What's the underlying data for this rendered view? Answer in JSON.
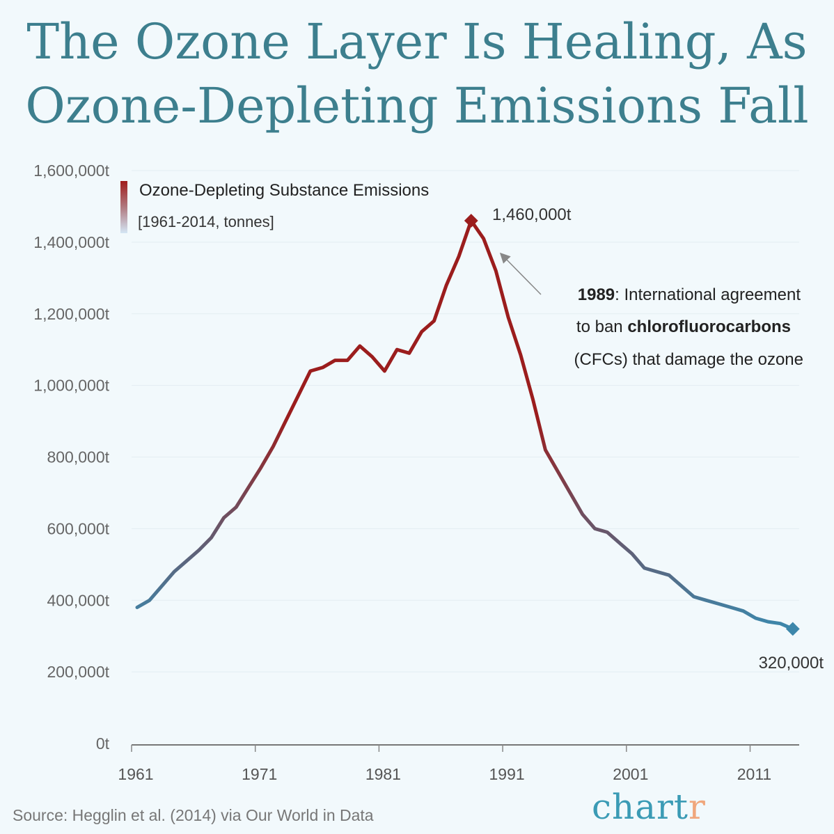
{
  "title_lines": [
    "The Ozone Layer Is Healing, As",
    "Ozone-Depleting Emissions Fall"
  ],
  "source": "Source: Hegglin et al. (2014) via Our World in Data",
  "logo": {
    "main": "chart",
    "accent": "r"
  },
  "colors": {
    "high": "#9b1d1d",
    "low": "#3d87ab",
    "title": "#3d7f8e",
    "background": "#f2f9fc"
  },
  "chart_data": {
    "type": "line",
    "title": "",
    "legend": {
      "title": "Ozone-Depleting Substance Emissions",
      "subtitle": "[1961-2014, tonnes]",
      "placement": "top-left"
    },
    "xlabel": "",
    "ylabel": "",
    "ylim": [
      0,
      1600000
    ],
    "xlim": [
      1961,
      2014
    ],
    "grid": true,
    "y_ticks": [
      {
        "value": 0,
        "label": "0t"
      },
      {
        "value": 200000,
        "label": "200,000t"
      },
      {
        "value": 400000,
        "label": "400,000t"
      },
      {
        "value": 600000,
        "label": "600,000t"
      },
      {
        "value": 800000,
        "label": "800,000t"
      },
      {
        "value": 1000000,
        "label": "1,000,000t"
      },
      {
        "value": 1200000,
        "label": "1,200,000t"
      },
      {
        "value": 1400000,
        "label": "1,400,000t"
      },
      {
        "value": 1600000,
        "label": "1,600,000t"
      }
    ],
    "x_ticks": [
      {
        "value": 1961,
        "label": "1961"
      },
      {
        "value": 1971,
        "label": "1971"
      },
      {
        "value": 1981,
        "label": "1981"
      },
      {
        "value": 1991,
        "label": "1991"
      },
      {
        "value": 2001,
        "label": "2001"
      },
      {
        "value": 2011,
        "label": "2011"
      }
    ],
    "x": [
      1961,
      1962,
      1963,
      1964,
      1965,
      1966,
      1967,
      1968,
      1969,
      1970,
      1971,
      1972,
      1973,
      1974,
      1975,
      1976,
      1977,
      1978,
      1979,
      1980,
      1981,
      1982,
      1983,
      1984,
      1985,
      1986,
      1987,
      1988,
      1989,
      1990,
      1991,
      1992,
      1993,
      1994,
      1995,
      1996,
      1997,
      1998,
      1999,
      2000,
      2001,
      2002,
      2003,
      2004,
      2005,
      2006,
      2007,
      2008,
      2009,
      2010,
      2011,
      2012,
      2013,
      2014
    ],
    "y": [
      380000,
      400000,
      440000,
      480000,
      510000,
      540000,
      575000,
      630000,
      660000,
      715000,
      770000,
      830000,
      900000,
      970000,
      1040000,
      1050000,
      1070000,
      1070000,
      1110000,
      1080000,
      1040000,
      1100000,
      1090000,
      1150000,
      1180000,
      1280000,
      1360000,
      1460000,
      1410000,
      1320000,
      1190000,
      1085000,
      960000,
      820000,
      760000,
      700000,
      640000,
      600000,
      590000,
      560000,
      530000,
      490000,
      480000,
      470000,
      440000,
      410000,
      400000,
      390000,
      380000,
      370000,
      350000,
      340000,
      335000,
      320000
    ],
    "annotations": [
      {
        "year": 1988,
        "value": 1460000,
        "label": "1,460,000t"
      },
      {
        "year": 2014,
        "value": 320000,
        "label": "320,000t"
      },
      {
        "bold": "1989",
        "lines": [
          ": International agreement",
          "to ban ",
          "chlorofluorocarbons",
          "(CFCs) that damage the ozone"
        ]
      }
    ]
  }
}
